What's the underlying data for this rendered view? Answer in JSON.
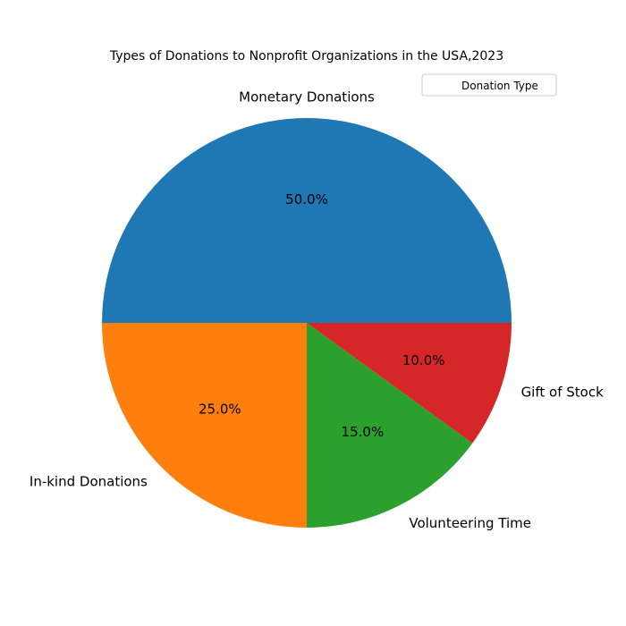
{
  "chart_data": {
    "type": "pie",
    "title": "Types of Donations to Nonprofit Organizations in the USA,2023",
    "categories": [
      "Monetary Donations",
      "In-kind Donations",
      "Volunteering Time",
      "Gift of Stock"
    ],
    "values": [
      50,
      25,
      15,
      10
    ],
    "percent_labels": [
      "50.0%",
      "25.0%",
      "15.0%",
      "10.0%"
    ],
    "colors": [
      "#1f77b4",
      "#ff7f0e",
      "#2ca02c",
      "#d62728"
    ],
    "start_angle_deg": 0,
    "direction": "counterclockwise",
    "legend": {
      "title": "Donation Type",
      "placement": "top-right"
    }
  }
}
